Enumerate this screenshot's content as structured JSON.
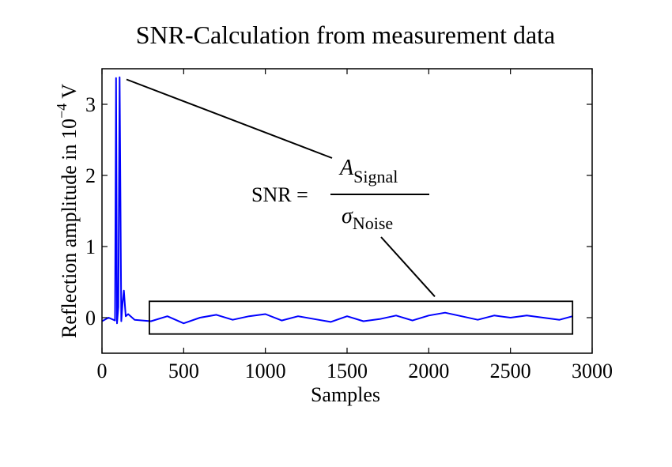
{
  "chart_data": {
    "type": "line",
    "title": "SNR-Calculation from measurement data",
    "xlabel": "Samples",
    "ylabel": {
      "text": "Reflection amplitude in 10",
      "exponent": "−4",
      "unit": " V"
    },
    "xlim": [
      0,
      3000
    ],
    "ylim": [
      -0.5,
      3.5
    ],
    "xticks": [
      0,
      500,
      1000,
      1500,
      2000,
      2500,
      3000
    ],
    "yticks": [
      0,
      1,
      2,
      3
    ],
    "grid": false,
    "series": [
      {
        "color": "#0000ff",
        "x": [
          0,
          40,
          80,
          86,
          92,
          100,
          108,
          118,
          126,
          134,
          145,
          160,
          200,
          300,
          400,
          500,
          600,
          700,
          800,
          900,
          1000,
          1100,
          1200,
          1300,
          1400,
          1500,
          1600,
          1700,
          1800,
          1900,
          2000,
          2100,
          2200,
          2300,
          2400,
          2500,
          2600,
          2700,
          2800,
          2880
        ],
        "y": [
          -0.05,
          0.0,
          -0.04,
          3.37,
          -0.08,
          0.15,
          3.38,
          -0.05,
          0.2,
          0.38,
          0.02,
          0.05,
          -0.03,
          -0.05,
          0.02,
          -0.08,
          0.0,
          0.04,
          -0.03,
          0.02,
          0.05,
          -0.04,
          0.02,
          -0.02,
          -0.06,
          0.02,
          -0.05,
          -0.02,
          0.03,
          -0.04,
          0.03,
          0.07,
          0.02,
          -0.03,
          0.03,
          0.0,
          0.03,
          0.0,
          -0.03,
          0.02
        ]
      }
    ],
    "annotations": {
      "formula_lhs": "SNR =",
      "numerator": "A",
      "numerator_sub": "Signal",
      "denominator": "σ",
      "denominator_sub": "Noise",
      "signal_peak": {
        "x": 150,
        "y": 3.35
      },
      "noise_box": {
        "x0": 290,
        "x1": 2880,
        "y0": -0.23,
        "y1": 0.23
      }
    }
  }
}
